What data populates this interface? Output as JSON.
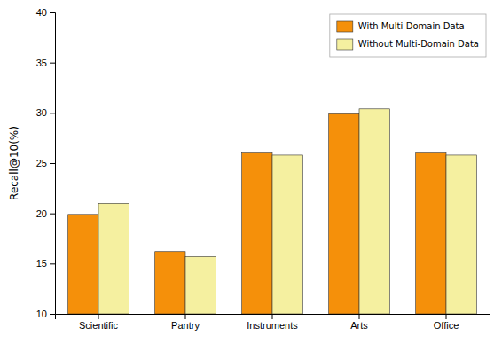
{
  "chart_data": {
    "type": "bar",
    "categories": [
      "Scientific",
      "Pantry",
      "Instruments",
      "Arts",
      "Office"
    ],
    "series": [
      {
        "name": "With Multi-Domain Data",
        "color": "#F5900A",
        "values": [
          19.9,
          16.2,
          26.0,
          29.9,
          26.0
        ]
      },
      {
        "name": "Without Multi-Domain Data",
        "color": "#F5F0A0",
        "values": [
          21.0,
          15.7,
          25.8,
          30.4,
          25.8
        ]
      }
    ],
    "ylabel": "Recall@10(%)",
    "ylim": [
      10,
      40
    ],
    "yticks": [
      10,
      15,
      20,
      25,
      30,
      35,
      40
    ],
    "legend": "upper right"
  }
}
